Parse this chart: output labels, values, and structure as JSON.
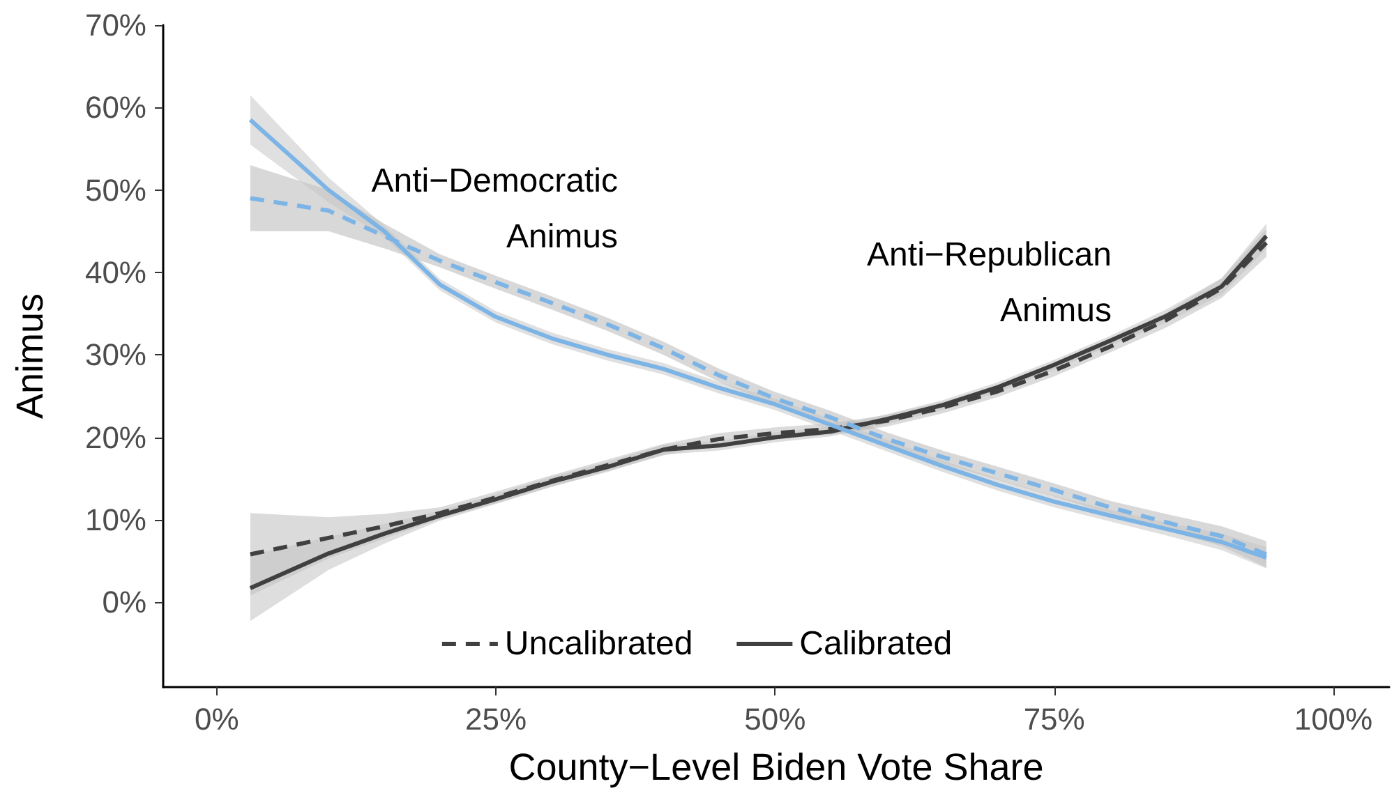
{
  "chart_data": {
    "type": "line",
    "xlabel": "County−Level Biden Vote Share",
    "ylabel": "Animus",
    "x": [
      3,
      10,
      15,
      20,
      25,
      30,
      35,
      40,
      45,
      50,
      55,
      60,
      65,
      70,
      75,
      80,
      85,
      90,
      94
    ],
    "xlim": [
      -4.8,
      105
    ],
    "ylim": [
      -10.3,
      70
    ],
    "xticks": [
      {
        "value": 0,
        "label": "0%"
      },
      {
        "value": 25,
        "label": "25%"
      },
      {
        "value": 50,
        "label": "50%"
      },
      {
        "value": 75,
        "label": "75%"
      },
      {
        "value": 100,
        "label": "100%"
      }
    ],
    "yticks": [
      {
        "value": 0,
        "label": "0%"
      },
      {
        "value": 10,
        "label": "10%"
      },
      {
        "value": 20,
        "label": "20%"
      },
      {
        "value": 30,
        "label": "30%"
      },
      {
        "value": 40,
        "label": "40%"
      },
      {
        "value": 50,
        "label": "50%"
      },
      {
        "value": 60,
        "label": "60%"
      },
      {
        "value": 70,
        "label": "70%"
      }
    ],
    "grid": false,
    "legend": "bottom",
    "marker": "none",
    "series": [
      {
        "name": "Uncalibrated",
        "color": "#404040",
        "line_style": "dashed",
        "values": [
          5.8,
          7.8,
          9.2,
          10.8,
          12.7,
          14.7,
          16.6,
          18.5,
          19.8,
          20.5,
          21,
          22,
          23.6,
          25.6,
          28.1,
          31,
          34.2,
          38.1,
          43.6
        ],
        "lower": [
          0.8,
          5.3,
          7.7,
          10.1,
          12,
          14,
          15.9,
          17.8,
          19.1,
          19.8,
          20.3,
          21.3,
          22.9,
          24.9,
          27.4,
          30.3,
          33.3,
          36.9,
          41.9
        ],
        "upper": [
          10.8,
          10.3,
          10.7,
          11.5,
          13.4,
          15.4,
          17.3,
          19.2,
          20.5,
          21.2,
          21.7,
          22.7,
          24.3,
          26.3,
          28.8,
          31.7,
          35.1,
          39.3,
          45.3
        ]
      },
      {
        "name": "Calibrated",
        "color": "#404040",
        "line_style": "solid",
        "values": [
          1.7,
          5.9,
          8.3,
          10.5,
          12.5,
          14.6,
          16.4,
          18.5,
          19,
          20,
          20.7,
          22.2,
          23.9,
          26.1,
          28.8,
          31.7,
          34.7,
          38.3,
          44.4
        ],
        "lower": [
          -2.3,
          3.9,
          7.1,
          9.9,
          11.9,
          14,
          15.8,
          17.9,
          18.4,
          19.4,
          20.1,
          21.6,
          23.3,
          25.5,
          28.2,
          31.1,
          33.9,
          37.3,
          42.9
        ],
        "upper": [
          5.7,
          7.9,
          9.5,
          11.1,
          13.1,
          15.2,
          17,
          19.1,
          19.6,
          20.6,
          21.3,
          22.8,
          24.5,
          26.7,
          29.4,
          32.3,
          35.5,
          39.3,
          45.9
        ]
      },
      {
        "color": "#7db4e6",
        "line_style": "dashed",
        "values": [
          49,
          47.5,
          44.4,
          41.4,
          38.8,
          36.3,
          33.7,
          30.8,
          27.5,
          24.7,
          22.4,
          19.8,
          17.6,
          15.6,
          13.6,
          11.5,
          9.7,
          8,
          5.8
        ],
        "lower": [
          45,
          45,
          42.9,
          40.6,
          38,
          35.5,
          32.9,
          30,
          26.7,
          23.9,
          21.6,
          19,
          16.8,
          14.8,
          12.8,
          10.7,
          8.7,
          6.8,
          4.2
        ],
        "upper": [
          53,
          50,
          45.9,
          42.2,
          39.6,
          37.1,
          34.5,
          31.6,
          28.3,
          25.5,
          23.2,
          20.6,
          18.4,
          16.4,
          14.4,
          12.3,
          10.7,
          9.2,
          7.4
        ]
      },
      {
        "color": "#7db4e6",
        "line_style": "solid",
        "values": [
          58.5,
          50,
          45,
          38.5,
          34.6,
          32,
          30,
          28.3,
          26,
          24,
          21.5,
          19,
          16.5,
          14.2,
          12.2,
          10.5,
          8.9,
          7.3,
          5.4
        ],
        "lower": [
          55.5,
          48.5,
          44.3,
          37.8,
          33.9,
          31.3,
          29.3,
          27.6,
          25.3,
          23.3,
          20.8,
          18.3,
          15.8,
          13.5,
          11.5,
          9.8,
          8.1,
          6.3,
          4.1
        ],
        "upper": [
          61.5,
          51.5,
          45.7,
          39.2,
          35.3,
          32.7,
          30.7,
          29,
          26.7,
          24.7,
          22.2,
          19.7,
          17.2,
          14.9,
          12.9,
          11.2,
          9.7,
          8.3,
          6.7
        ]
      }
    ],
    "annotations": [
      "Anti−Democratic\nAnimus",
      "Anti−Republican\nAnimus"
    ]
  }
}
